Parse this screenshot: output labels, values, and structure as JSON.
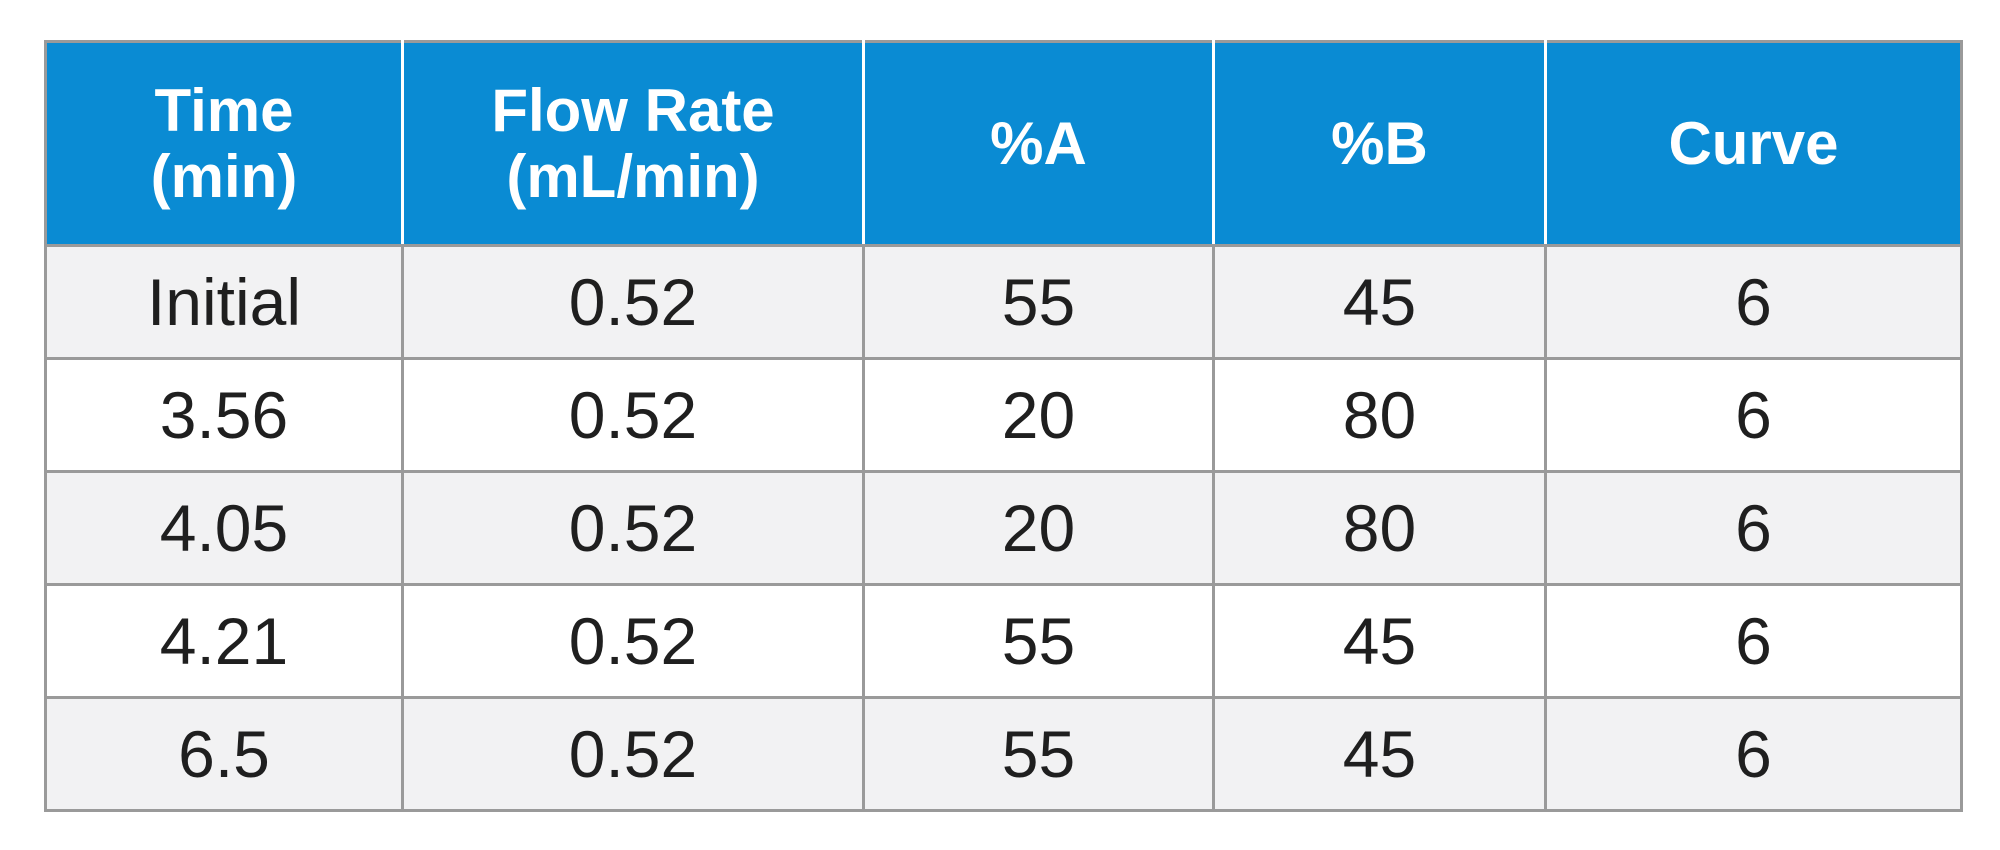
{
  "table": {
    "headers": [
      {
        "line1": "Time",
        "line2": "(min)"
      },
      {
        "line1": "Flow Rate",
        "line2": "(mL/min)"
      },
      {
        "line1": "%A",
        "line2": ""
      },
      {
        "line1": "%B",
        "line2": ""
      },
      {
        "line1": "Curve",
        "line2": ""
      }
    ],
    "rows": [
      [
        "Initial",
        "0.52",
        "55",
        "45",
        "6"
      ],
      [
        "3.56",
        "0.52",
        "20",
        "80",
        "6"
      ],
      [
        "4.05",
        "0.52",
        "20",
        "80",
        "6"
      ],
      [
        "4.21",
        "0.52",
        "55",
        "45",
        "6"
      ],
      [
        "6.5",
        "0.52",
        "55",
        "45",
        "6"
      ]
    ]
  },
  "colors": {
    "header_bg": "#0a8bd3",
    "header_text": "#ffffff",
    "shaded_row": "#f2f2f3",
    "border": "#9a9a9a"
  }
}
